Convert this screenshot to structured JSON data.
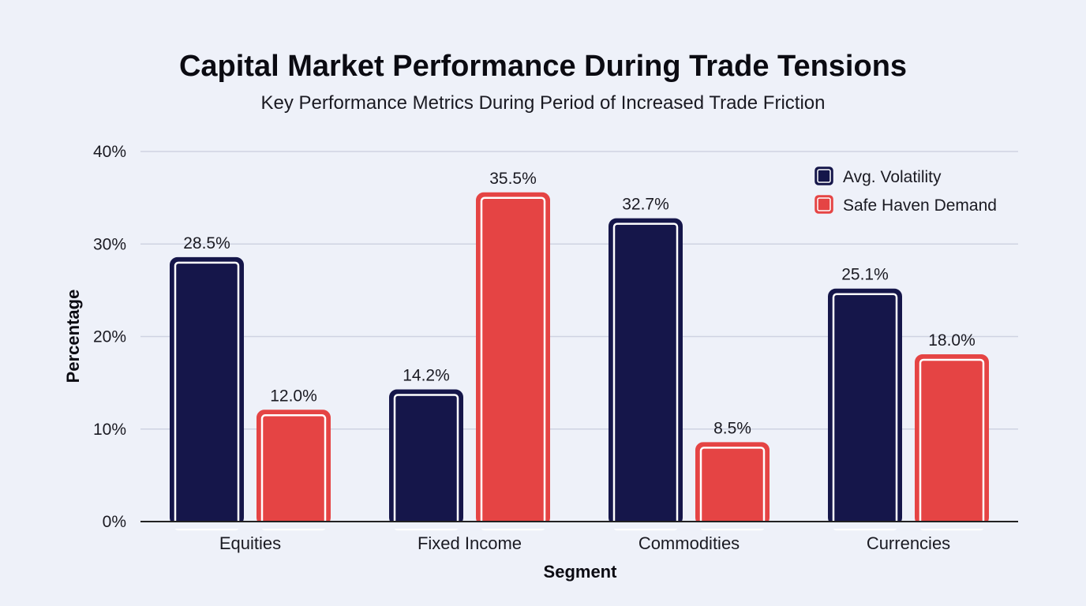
{
  "chart_data": {
    "type": "bar",
    "title": "Capital Market Performance During Trade Tensions",
    "subtitle": "Key Performance Metrics During Period of Increased Trade Friction",
    "xlabel": "Segment",
    "ylabel": "Percentage",
    "categories": [
      "Equities",
      "Fixed Income",
      "Commodities",
      "Currencies"
    ],
    "series": [
      {
        "name": "Avg. Volatility",
        "color": "#15164a",
        "values": [
          28.5,
          14.2,
          32.7,
          25.1
        ],
        "labels": [
          "28.5%",
          "14.2%",
          "32.7%",
          "25.1%"
        ]
      },
      {
        "name": "Safe Haven Demand",
        "color": "#e54444",
        "values": [
          12.0,
          35.5,
          8.5,
          18.0
        ],
        "labels": [
          "12.0%",
          "35.5%",
          "8.5%",
          "18.0%"
        ]
      }
    ],
    "ylim": [
      0,
      40
    ],
    "yticks": [
      0,
      10,
      20,
      30,
      40
    ],
    "ytick_labels": [
      "0%",
      "10%",
      "20%",
      "30%",
      "40%"
    ],
    "grid": true,
    "legend_position": "top-right"
  }
}
